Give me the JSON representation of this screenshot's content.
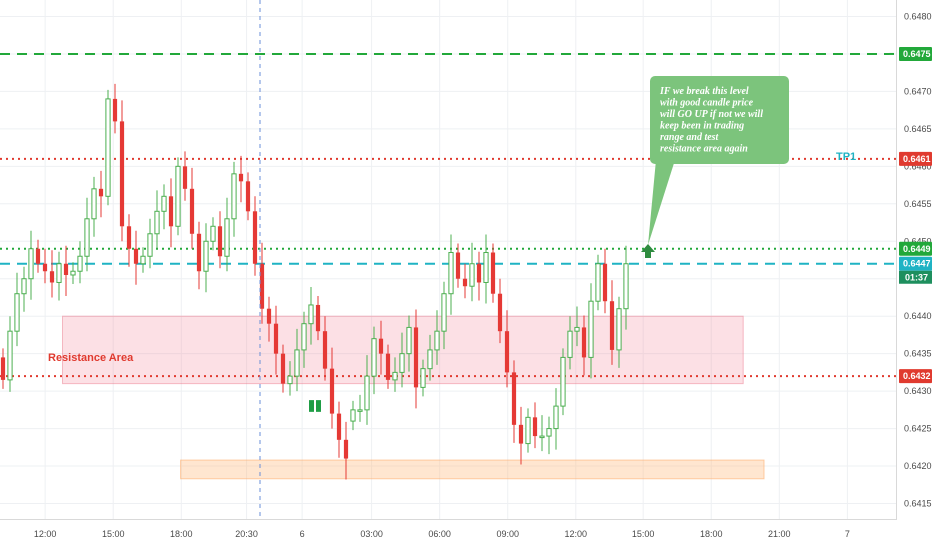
{
  "chart_data": {
    "type": "candlestick",
    "ylim": [
      0.64128,
      0.64822
    ],
    "x_domain": [
      0,
      129
    ],
    "y_ticks": [
      0.6415,
      0.642,
      0.6425,
      0.643,
      0.6435,
      0.644,
      0.6445,
      0.645,
      0.6455,
      0.646,
      0.6465,
      0.647,
      0.6475,
      0.648
    ],
    "y_tick_labels": [
      "0.6415",
      "0.6420",
      "0.6425",
      "0.6430",
      "0.6435",
      "0.6440",
      "0.6445",
      "0.6450",
      "0.6455",
      "0.6460",
      "0.6465",
      "0.6470",
      "0.6475",
      "0.6480"
    ],
    "x_ticks": [
      {
        "label": "12:00",
        "x": 6.5
      },
      {
        "label": "15:00",
        "x": 16.3
      },
      {
        "label": "18:00",
        "x": 26.1
      },
      {
        "label": "20:30",
        "x": 35.5
      },
      {
        "label": "6",
        "x": 43.5
      },
      {
        "label": "03:00",
        "x": 53.5
      },
      {
        "label": "06:00",
        "x": 63.3
      },
      {
        "label": "09:00",
        "x": 73.1
      },
      {
        "label": "12:00",
        "x": 82.9
      },
      {
        "label": "15:00",
        "x": 92.6
      },
      {
        "label": "18:00",
        "x": 102.4
      },
      {
        "label": "21:00",
        "x": 112.2
      },
      {
        "label": "7",
        "x": 122
      }
    ],
    "grid": true,
    "candle_count": 90,
    "closes": [
      0.64315,
      0.6438,
      0.6443,
      0.6445,
      0.6449,
      0.6447,
      0.6446,
      0.64445,
      0.6447,
      0.64455,
      0.6446,
      0.6448,
      0.6453,
      0.6457,
      0.6456,
      0.6469,
      0.6466,
      0.6452,
      0.6449,
      0.6447,
      0.6448,
      0.6451,
      0.6454,
      0.6456,
      0.6452,
      0.646,
      0.6457,
      0.6451,
      0.6446,
      0.645,
      0.6452,
      0.6448,
      0.6453,
      0.6459,
      0.6458,
      0.6454,
      0.6447,
      0.6441,
      0.6439,
      0.6435,
      0.6431,
      0.6432,
      0.64355,
      0.6439,
      0.64415,
      0.6438,
      0.6433,
      0.6427,
      0.64235,
      0.6421,
      0.64275,
      0.64275,
      0.6432,
      0.6437,
      0.6435,
      0.64315,
      0.64325,
      0.6435,
      0.64385,
      0.64305,
      0.6433,
      0.64355,
      0.6438,
      0.6443,
      0.64485,
      0.6445,
      0.6444,
      0.6447,
      0.64445,
      0.64485,
      0.6443,
      0.6438,
      0.64325,
      0.64255,
      0.6423,
      0.64265,
      0.6424,
      0.6424,
      0.6425,
      0.6428,
      0.64345,
      0.6438,
      0.64385,
      0.64345,
      0.6442,
      0.6447,
      0.6442,
      0.64355,
      0.6441,
      0.6447
    ],
    "opens": [
      0.64345,
      0.64315,
      0.6438,
      0.6443,
      0.6445,
      0.6449,
      0.6447,
      0.6446,
      0.64445,
      0.6447,
      0.64455,
      0.6446,
      0.6448,
      0.6453,
      0.6457,
      0.6456,
      0.6469,
      0.6466,
      0.6452,
      0.6449,
      0.6447,
      0.6448,
      0.6451,
      0.6454,
      0.6456,
      0.6452,
      0.646,
      0.6457,
      0.6451,
      0.6446,
      0.645,
      0.6452,
      0.6448,
      0.6453,
      0.6459,
      0.6458,
      0.6454,
      0.6447,
      0.6441,
      0.6439,
      0.6435,
      0.6431,
      0.6432,
      0.64355,
      0.6439,
      0.64415,
      0.6438,
      0.6433,
      0.6427,
      0.64235,
      0.6426,
      0.64275,
      0.64275,
      0.6432,
      0.6437,
      0.6435,
      0.64315,
      0.64325,
      0.6435,
      0.64385,
      0.64305,
      0.6433,
      0.64355,
      0.6438,
      0.6443,
      0.64485,
      0.6445,
      0.6444,
      0.6447,
      0.64445,
      0.64485,
      0.6443,
      0.6438,
      0.64325,
      0.64255,
      0.6423,
      0.64265,
      0.6424,
      0.6424,
      0.6425,
      0.6428,
      0.64345,
      0.6438,
      0.64385,
      0.64345,
      0.6442,
      0.6447,
      0.6442,
      0.64355,
      0.6441
    ],
    "levels": [
      {
        "value": 0.6475,
        "style": "dashed",
        "color": "#22a83a",
        "label": "0.6475"
      },
      {
        "value": 0.6461,
        "style": "dotted",
        "color": "#e03a2f",
        "label": "0.6461"
      },
      {
        "value": 0.6449,
        "style": "dotted",
        "color": "#22a83a",
        "label": "0.6449"
      },
      {
        "value": 0.6447,
        "style": "dashed",
        "color": "#1fb3c4",
        "label": "0.6447"
      },
      {
        "value": 0.6432,
        "style": "dotted",
        "color": "#e03a2f",
        "label": "0.6432"
      }
    ],
    "resistance_zone": {
      "label": "Resistance Area",
      "y_range": [
        0.6431,
        0.644
      ],
      "x_range": [
        9,
        107
      ]
    },
    "support_zone": {
      "y_range": [
        0.64183,
        0.64208
      ],
      "x_range": [
        26,
        110
      ]
    },
    "target_label": "TP1",
    "countdown": "01:37",
    "annotation": "IF we break this level with good candle price will GO UP if not we will keep been in trading range and test resistance area again",
    "colors": {
      "up": "#4caf50",
      "down": "#e53935",
      "up_alt": "#1f9d45",
      "tp1": "#1fb3c4"
    }
  }
}
